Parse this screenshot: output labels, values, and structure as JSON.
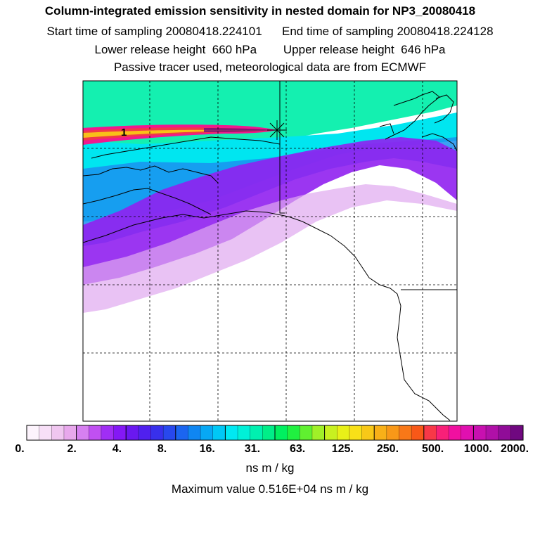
{
  "header": {
    "title": "Column-integrated emission sensitivity in nested domain for NP3_20080418",
    "sampling_line": "Start time of sampling 20080418.224101      End time of sampling 20080418.224128",
    "height_line": "Lower release height  660 hPa        Upper release height  646 hPa",
    "tracer_line": "Passive tracer used, meteorological data are from ECMWF"
  },
  "map": {
    "release_marker_label": "1",
    "colors": {
      "frame": "#000000",
      "coast": "#000000",
      "grid": "#000000"
    }
  },
  "colorbar": {
    "tick_labels": [
      "0.",
      "2.",
      "4.",
      "8.",
      "16.",
      "31.",
      "63.",
      "125.",
      "250.",
      "500.",
      "1000.",
      "2000."
    ],
    "colors": [
      "#fdf4fd",
      "#f7dff7",
      "#f0c6f0",
      "#e8a8ec",
      "#d680f0",
      "#c050f2",
      "#a02ef4",
      "#8418f5",
      "#6a18f0",
      "#5020ee",
      "#3830ec",
      "#2848ee",
      "#1b65f0",
      "#0f86f2",
      "#07a8f4",
      "#00c8f6",
      "#00e8f2",
      "#00f0d8",
      "#00f0b0",
      "#00ee88",
      "#00f060",
      "#20f040",
      "#60f030",
      "#a0f028",
      "#c8f020",
      "#e8f018",
      "#f8e018",
      "#f8c818",
      "#f8b018",
      "#f89818",
      "#f87818",
      "#f85818",
      "#f83848",
      "#f82078",
      "#f010a0",
      "#e010b0",
      "#c810b0",
      "#b010a8",
      "#900c98",
      "#700880"
    ]
  },
  "units": "ns m / kg",
  "max_value": "Maximum value  0.516E+04 ns m / kg"
}
